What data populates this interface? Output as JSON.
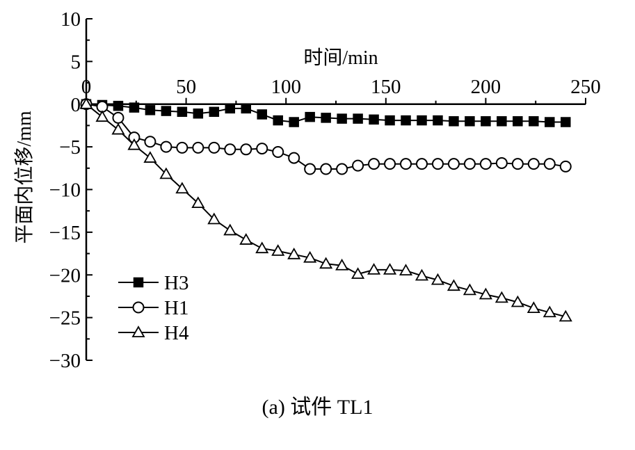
{
  "caption": "(a)  试件 TL1",
  "chart_data": {
    "type": "line",
    "xlabel": "时间/min",
    "ylabel": "平面内位移/mm",
    "xlim": [
      0,
      250
    ],
    "ylim": [
      -30,
      10
    ],
    "x_ticks": [
      0,
      50,
      100,
      150,
      200,
      250
    ],
    "y_ticks": [
      10,
      5,
      0,
      -5,
      -10,
      -15,
      -20,
      -25,
      -30
    ],
    "x_tick_labels": [
      "0",
      "50",
      "100",
      "150",
      "200",
      "250"
    ],
    "y_tick_labels": [
      "10",
      "5",
      "0",
      "−5",
      "−10",
      "−15",
      "−20",
      "−25",
      "−30"
    ],
    "x_axis_position": "y=0 (top of plot)",
    "legend_position": "bottom-left",
    "grid": false,
    "series": [
      {
        "name": "H3",
        "marker": "filled-square",
        "color": "#000000",
        "points": [
          [
            0,
            0
          ],
          [
            8,
            -0.1
          ],
          [
            16,
            -0.2
          ],
          [
            24,
            -0.4
          ],
          [
            32,
            -0.7
          ],
          [
            40,
            -0.8
          ],
          [
            48,
            -0.9
          ],
          [
            56,
            -1.1
          ],
          [
            64,
            -0.9
          ],
          [
            72,
            -0.5
          ],
          [
            80,
            -0.5
          ],
          [
            88,
            -1.2
          ],
          [
            96,
            -1.9
          ],
          [
            104,
            -2.1
          ],
          [
            112,
            -1.5
          ],
          [
            120,
            -1.6
          ],
          [
            128,
            -1.7
          ],
          [
            136,
            -1.7
          ],
          [
            144,
            -1.8
          ],
          [
            152,
            -1.9
          ],
          [
            160,
            -1.9
          ],
          [
            168,
            -1.9
          ],
          [
            176,
            -1.9
          ],
          [
            184,
            -2.0
          ],
          [
            192,
            -2.0
          ],
          [
            200,
            -2.0
          ],
          [
            208,
            -2.0
          ],
          [
            216,
            -2.0
          ],
          [
            224,
            -2.0
          ],
          [
            232,
            -2.1
          ],
          [
            240,
            -2.1
          ]
        ]
      },
      {
        "name": "H1",
        "marker": "open-circle",
        "color": "#000000",
        "points": [
          [
            0,
            0
          ],
          [
            8,
            -0.3
          ],
          [
            16,
            -1.6
          ],
          [
            24,
            -3.9
          ],
          [
            32,
            -4.4
          ],
          [
            40,
            -5.0
          ],
          [
            48,
            -5.1
          ],
          [
            56,
            -5.1
          ],
          [
            64,
            -5.1
          ],
          [
            72,
            -5.3
          ],
          [
            80,
            -5.3
          ],
          [
            88,
            -5.2
          ],
          [
            96,
            -5.6
          ],
          [
            104,
            -6.3
          ],
          [
            112,
            -7.6
          ],
          [
            120,
            -7.6
          ],
          [
            128,
            -7.6
          ],
          [
            136,
            -7.2
          ],
          [
            144,
            -7.0
          ],
          [
            152,
            -7.0
          ],
          [
            160,
            -7.0
          ],
          [
            168,
            -7.0
          ],
          [
            176,
            -7.0
          ],
          [
            184,
            -7.0
          ],
          [
            192,
            -7.0
          ],
          [
            200,
            -7.0
          ],
          [
            208,
            -6.9
          ],
          [
            216,
            -7.0
          ],
          [
            224,
            -7.0
          ],
          [
            232,
            -7.0
          ],
          [
            240,
            -7.3
          ]
        ]
      },
      {
        "name": "H4",
        "marker": "open-triangle",
        "color": "#000000",
        "points": [
          [
            0,
            0
          ],
          [
            8,
            -1.5
          ],
          [
            16,
            -3.0
          ],
          [
            24,
            -4.8
          ],
          [
            32,
            -6.3
          ],
          [
            40,
            -8.2
          ],
          [
            48,
            -9.9
          ],
          [
            56,
            -11.6
          ],
          [
            64,
            -13.5
          ],
          [
            72,
            -14.8
          ],
          [
            80,
            -15.9
          ],
          [
            88,
            -16.9
          ],
          [
            96,
            -17.2
          ],
          [
            104,
            -17.6
          ],
          [
            112,
            -18.0
          ],
          [
            120,
            -18.7
          ],
          [
            128,
            -18.9
          ],
          [
            136,
            -19.9
          ],
          [
            144,
            -19.4
          ],
          [
            152,
            -19.4
          ],
          [
            160,
            -19.5
          ],
          [
            168,
            -20.1
          ],
          [
            176,
            -20.6
          ],
          [
            184,
            -21.3
          ],
          [
            192,
            -21.8
          ],
          [
            200,
            -22.3
          ],
          [
            208,
            -22.7
          ],
          [
            216,
            -23.2
          ],
          [
            224,
            -23.9
          ],
          [
            232,
            -24.4
          ],
          [
            240,
            -24.9
          ]
        ]
      }
    ]
  }
}
